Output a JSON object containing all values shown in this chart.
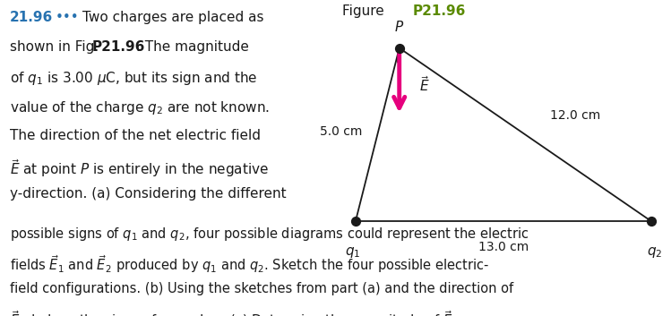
{
  "bg_color": "#ffffff",
  "figure_title_color": "#5a8a00",
  "text_color": "#1a1a1a",
  "problem_number_color": "#2772b0",
  "dots_color": "#2772b0",
  "arrow_color": "#e6007e",
  "dot_color": "#1a1a1a",
  "line_color": "#1a1a1a",
  "fs_main": 11.0,
  "fs_small": 10.5,
  "q1_cm": [
    0.0,
    0.0
  ],
  "q2_cm": [
    13.0,
    0.0
  ],
  "side_q1P_cm": 5.0,
  "side_q2P_cm": 12.0,
  "side_q1q2_cm": 13.0
}
